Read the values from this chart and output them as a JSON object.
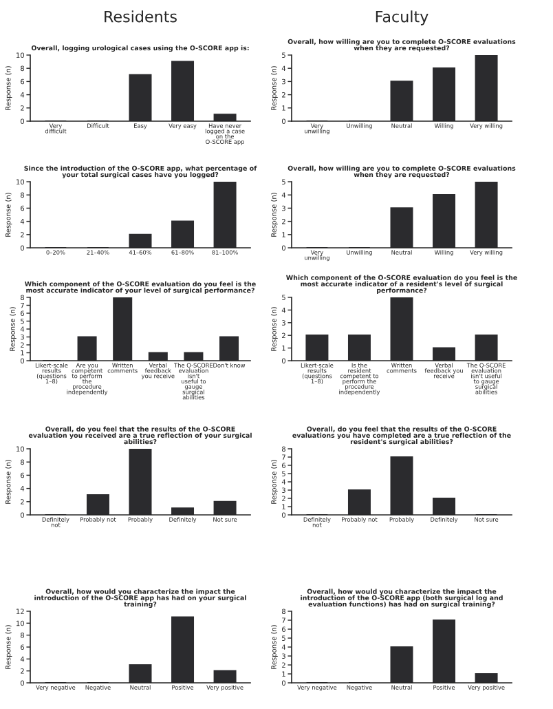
{
  "chart_data": [
    {
      "type": "bar",
      "annotations": [
        "Residents"
      ],
      "title": "Overall, logging urological cases using the O-SCORE app is:",
      "ylabel": "Response (n)",
      "categories": [
        "Very difficult",
        "Difficult",
        "Easy",
        "Very easy",
        "Have never logged a case on the O-SCORE app"
      ],
      "values": [
        0,
        0,
        7,
        9,
        1
      ],
      "color": "#2b2b2e",
      "ylim": [
        0,
        10
      ],
      "yticks": [
        0,
        2,
        4,
        6,
        8,
        10
      ],
      "grid": false
    },
    {
      "type": "bar",
      "title": "Since the introduction of the O-SCORE app, what percentage of your total surgical cases have you logged?",
      "ylabel": "Response (n)",
      "categories": [
        "0–20%",
        "21–40%",
        "41–60%",
        "61–80%",
        "81–100%"
      ],
      "values": [
        0,
        0,
        2,
        4,
        10
      ],
      "color": "#2b2b2e",
      "ylim": [
        0,
        10
      ],
      "yticks": [
        0,
        2,
        4,
        6,
        8,
        10
      ],
      "grid": false
    },
    {
      "type": "bar",
      "title": "Which component of the O-SCORE evaluation do you feel is the most accurate indicator of your level of surgical performance?",
      "ylabel": "Response (n)",
      "categories": [
        "Likert-scale results (questions 1–8)",
        "Are you competent to perform the procedure independently",
        "Written comments",
        "Verbal feedback you receive",
        "The O-SCORE evaluation isn't useful to gauge surgical abilities",
        "Don't know"
      ],
      "values": [
        0,
        3,
        8,
        1,
        1,
        3
      ],
      "color": "#2b2b2e",
      "ylim": [
        0,
        8
      ],
      "yticks": [
        0,
        1,
        2,
        3,
        4,
        5,
        6,
        7,
        8
      ],
      "grid": false
    },
    {
      "type": "bar",
      "title": "Overall, do you feel that the results of the O-SCORE evaluation you received are a true reflection of your surgical abilities?",
      "ylabel": "Response (n)",
      "categories": [
        "Definitely not",
        "Probably not",
        "Probably",
        "Definitely",
        "Not sure"
      ],
      "values": [
        0,
        3,
        10,
        1,
        2
      ],
      "color": "#2b2b2e",
      "ylim": [
        0,
        10
      ],
      "yticks": [
        0,
        2,
        4,
        6,
        8,
        10
      ],
      "grid": false
    },
    {
      "type": "bar",
      "title": "Overall, how would you characterize the impact the introduction of the O-SCORE app has had on your surgical training?",
      "ylabel": "Response (n)",
      "categories": [
        "Very negative",
        "Negative",
        "Neutral",
        "Positive",
        "Very positive"
      ],
      "values": [
        0,
        0,
        3,
        11,
        2
      ],
      "color": "#2b2b2e",
      "ylim": [
        0,
        12
      ],
      "yticks": [
        0,
        2,
        4,
        6,
        8,
        10,
        12
      ],
      "grid": false
    },
    {
      "type": "bar",
      "annotations": [
        "Faculty"
      ],
      "title": "Overall, how willing are you to complete O-SCORE evaluations when they are requested?",
      "ylabel": "Response (n)",
      "categories": [
        "Very unwilling",
        "Unwilling",
        "Neutral",
        "Willing",
        "Very willing"
      ],
      "values": [
        0,
        0,
        3,
        4,
        5
      ],
      "color": "#2b2b2e",
      "ylim": [
        0,
        5
      ],
      "yticks": [
        0,
        1,
        2,
        3,
        4,
        5
      ],
      "grid": false
    },
    {
      "type": "bar",
      "title": "Overall, how willing are you to complete O-SCORE evaluations when they are requested?",
      "ylabel": "Response (n)",
      "categories": [
        "Very unwilling",
        "Unwilling",
        "Neutral",
        "Willing",
        "Very willing"
      ],
      "values": [
        0,
        0,
        3,
        4,
        5
      ],
      "color": "#2b2b2e",
      "ylim": [
        0,
        5
      ],
      "yticks": [
        0,
        1,
        2,
        3,
        4,
        5
      ],
      "grid": false
    },
    {
      "type": "bar",
      "title": "Which component of the O-SCORE evaluation do you feel is the most accurate indicator of a resident's level of surgical performance?",
      "ylabel": "Response (n)",
      "categories": [
        "Likert-scale results (questions 1–8)",
        "Is the resident competent to perform the procedure independently",
        "Written comments",
        "Verbal feedback you receive",
        "The O-SCORE evaluation isn't useful to gauge surgical abilities"
      ],
      "values": [
        2,
        2,
        5,
        1,
        2
      ],
      "color": "#2b2b2e",
      "ylim": [
        0,
        5
      ],
      "yticks": [
        0,
        1,
        2,
        3,
        4,
        5
      ],
      "grid": false
    },
    {
      "type": "bar",
      "title": "Overall, do you feel that the results of the O-SCORE evaluations you have completed are a true reflection of the resident's surgical abilities?",
      "ylabel": "Response (n)",
      "categories": [
        "Definitely not",
        "Probably not",
        "Probably",
        "Definitely",
        "Not sure"
      ],
      "values": [
        0,
        3,
        7,
        2,
        0
      ],
      "color": "#2b2b2e",
      "ylim": [
        0,
        8
      ],
      "yticks": [
        0,
        1,
        2,
        3,
        4,
        5,
        6,
        7,
        8
      ],
      "grid": false
    },
    {
      "type": "bar",
      "title": "Overall, how would you characterize the impact the introduction of the O-SCORE app (both surgical log and evaluation functions) has had on surgical training?",
      "ylabel": "Response (n)",
      "categories": [
        "Very negative",
        "Negative",
        "Neutral",
        "Positive",
        "Very positive"
      ],
      "values": [
        0,
        0,
        4,
        7,
        1
      ],
      "color": "#2b2b2e",
      "ylim": [
        0,
        8
      ],
      "yticks": [
        0,
        1,
        2,
        3,
        4,
        5,
        6,
        7,
        8
      ],
      "grid": false
    }
  ]
}
